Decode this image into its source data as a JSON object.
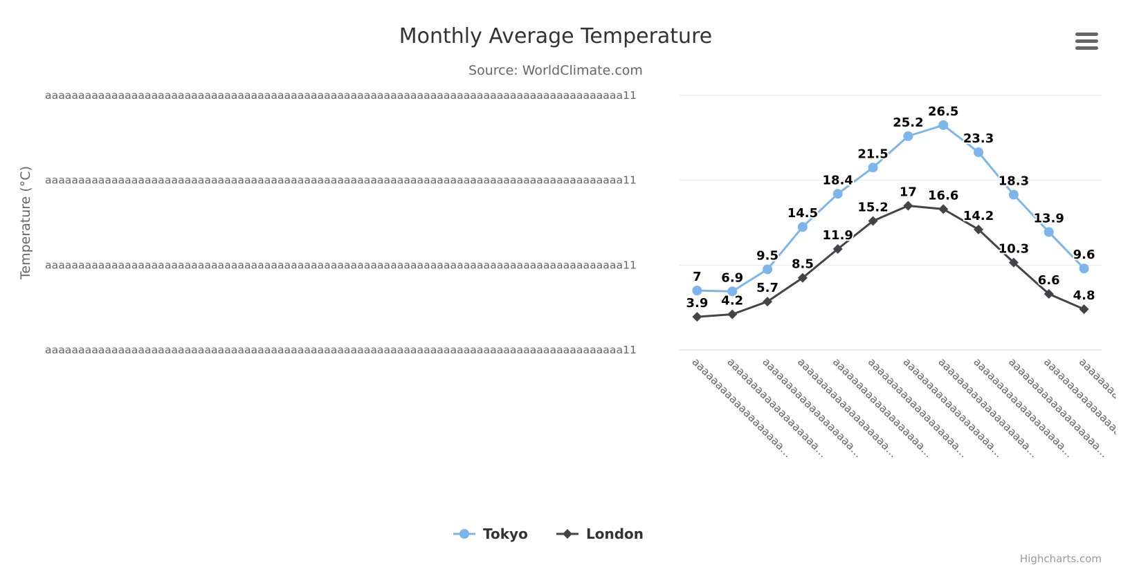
{
  "chart_data": {
    "type": "line",
    "title": "Monthly Average Temperature",
    "subtitle": "Source: WorldClimate.com",
    "ylabel": "Temperature (°C)",
    "xlabel": "",
    "ylim": [
      0,
      30
    ],
    "yticks": [
      0,
      10,
      20,
      30
    ],
    "ytick_labels": [
      "aaaaaaaaaaaaaaaaaaaaaaaaaaaaaaaaaaaaaaaaaaaaaaaaaaaaaaaaaaaaaaaaaaaaaaaaaaaaaaaaaaaaaaa11",
      "aaaaaaaaaaaaaaaaaaaaaaaaaaaaaaaaaaaaaaaaaaaaaaaaaaaaaaaaaaaaaaaaaaaaaaaaaaaaaaaaaaaaaaa11",
      "aaaaaaaaaaaaaaaaaaaaaaaaaaaaaaaaaaaaaaaaaaaaaaaaaaaaaaaaaaaaaaaaaaaaaaaaaaaaaaaaaaaaaaa11",
      "aaaaaaaaaaaaaaaaaaaaaaaaaaaaaaaaaaaaaaaaaaaaaaaaaaaaaaaaaaaaaaaaaaaaaaaaaaaaaaaaaaaaaaa11"
    ],
    "categories": [
      "aaaaaaaaaaaaaaaaaaa…",
      "aaaaaaaaaaaaaaaaaaa…",
      "aaaaaaaaaaaaaaaaaaa…",
      "aaaaaaaaaaaaaaaaaaa…",
      "aaaaaaaaaaaaaaaaaaa…",
      "aaaaaaaaaaaaaaaaaaa…",
      "aaaaaaaaaaaaaaaaaaa…",
      "aaaaaaaaaaaaaaaaaaa…",
      "aaaaaaaaaaaaaaaaaaa…",
      "aaaaaaaaaaaaaaaaaaa…",
      "aaaaaaaaaaaaaaaaaaa…",
      "aaaaaaaaaaaaaaaaaaa…"
    ],
    "grid": true,
    "legend_position": "bottom-center",
    "series": [
      {
        "name": "Tokyo",
        "color": "#7cb5ec",
        "marker": "circle",
        "values": [
          7,
          6.9,
          9.5,
          14.5,
          18.4,
          21.5,
          25.2,
          26.5,
          23.3,
          18.3,
          13.9,
          9.6
        ]
      },
      {
        "name": "London",
        "color": "#434348",
        "marker": "diamond",
        "values": [
          3.9,
          4.2,
          5.7,
          8.5,
          11.9,
          15.2,
          17,
          16.6,
          14.2,
          10.3,
          6.6,
          4.8
        ]
      }
    ]
  },
  "menu_icon": "hamburger-menu-icon",
  "credits": "Highcharts.com"
}
